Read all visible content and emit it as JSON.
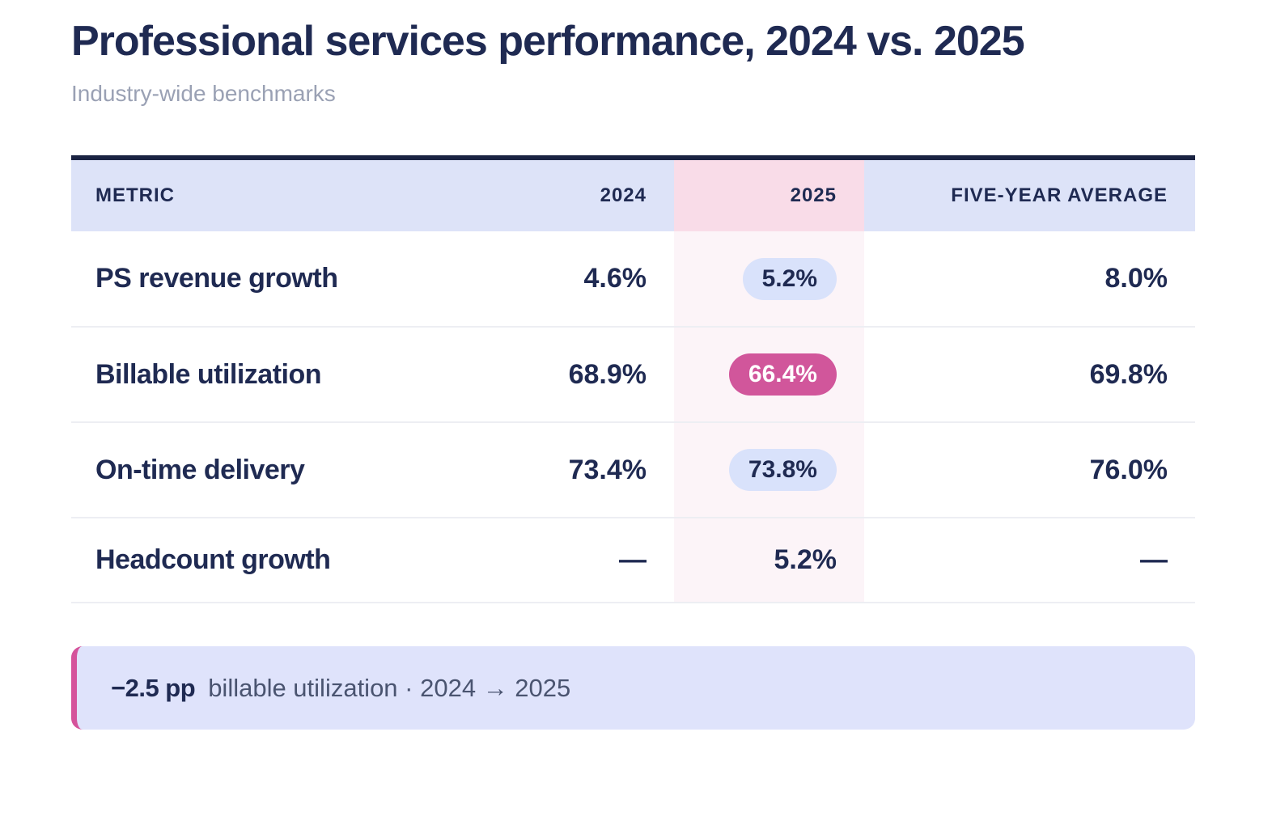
{
  "page": {
    "title": "Professional services performance, 2024 vs. 2025",
    "subtitle": "Industry-wide benchmarks"
  },
  "table": {
    "columns": [
      "METRIC",
      "2024",
      "2025",
      "FIVE-YEAR AVERAGE"
    ],
    "rows": [
      {
        "metric": "PS revenue growth",
        "y2024": "4.6%",
        "y2025": "5.2%",
        "five_year_avg": "8.0%",
        "y2025_badge": "lavender"
      },
      {
        "metric": "Billable utilization",
        "y2024": "68.9%",
        "y2025": "66.4%",
        "five_year_avg": "69.8%",
        "y2025_badge": "pink"
      },
      {
        "metric": "On-time delivery",
        "y2024": "73.4%",
        "y2025": "73.8%",
        "five_year_avg": "76.0%",
        "y2025_badge": "lavender"
      },
      {
        "metric": "Headcount growth",
        "y2024": "—",
        "y2025": "5.2%",
        "five_year_avg": "—",
        "y2025_badge": "none"
      }
    ]
  },
  "callout": {
    "delta": "−2.5 pp",
    "description": "billable utilization · 2024 → 2025"
  },
  "colors": {
    "navy_text": "#1f2a52",
    "table_top_border": "#1a2342",
    "header_lavender": "#dde3f8",
    "header_pink": "#f9dce8",
    "column_2025_tint": "#fcf4f8",
    "pill_lavender": "#d9e2fb",
    "pill_pink": "#d1569b",
    "row_divider": "#edeef3",
    "subtitle_gray": "#9aa1b4",
    "callout_bg": "#dfe3fb",
    "callout_border": "#d5539b",
    "callout_text": "#4a5470"
  },
  "chart_data": {
    "type": "table",
    "title": "Professional services performance, 2024 vs. 2025",
    "subtitle": "Industry-wide benchmarks",
    "columns": [
      "Metric",
      "2024",
      "2025",
      "Five-year average"
    ],
    "rows": [
      [
        "PS revenue growth",
        4.6,
        5.2,
        8.0
      ],
      [
        "Billable utilization",
        68.9,
        66.4,
        69.8
      ],
      [
        "On-time delivery",
        73.4,
        73.8,
        76.0
      ],
      [
        "Headcount growth",
        null,
        5.2,
        null
      ]
    ],
    "units": "percent",
    "highlighted_column": "2025",
    "highlighted_cell": {
      "row": "Billable utilization",
      "column": "2025",
      "value": 66.4,
      "style": "negative-pink"
    },
    "annotation": "−2.5 pp billable utilization · 2024 → 2025"
  }
}
